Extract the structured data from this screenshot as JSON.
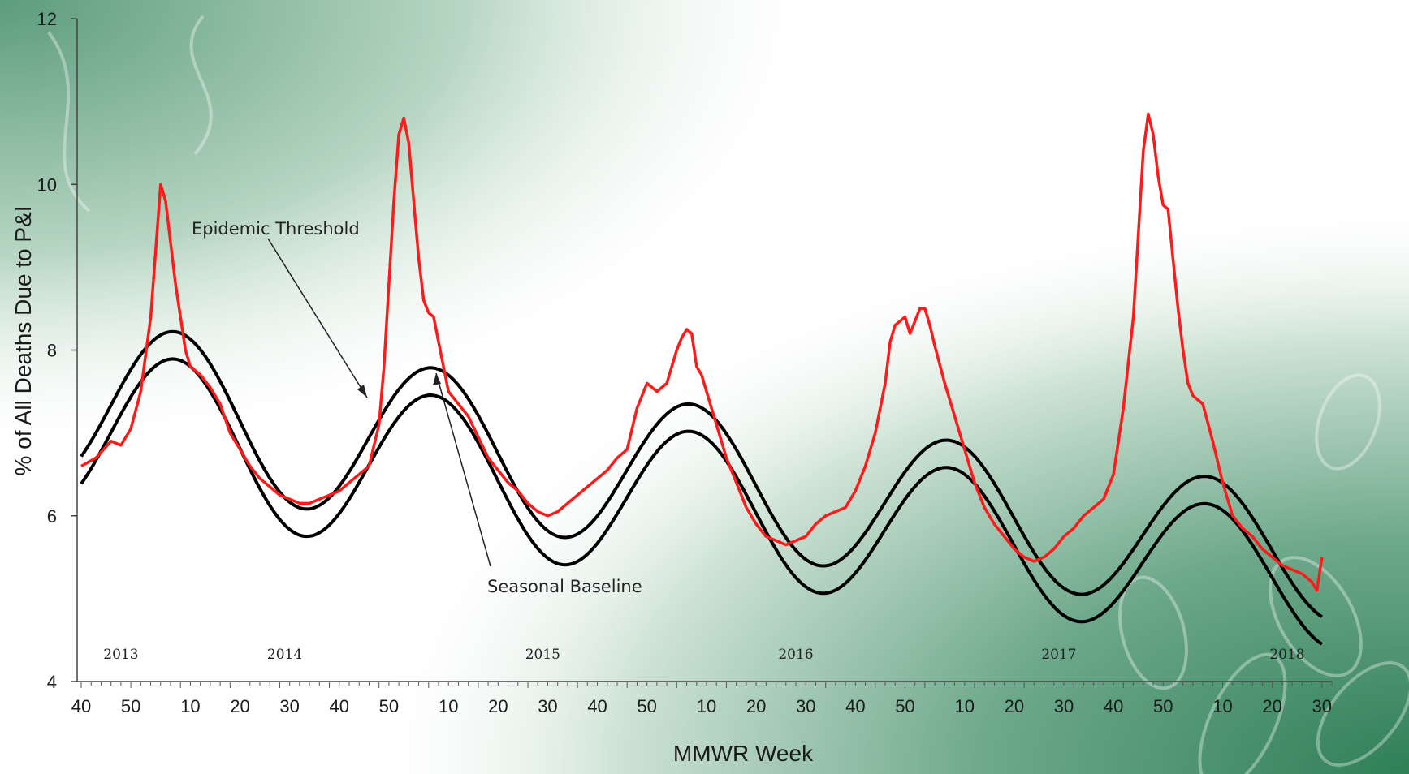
{
  "chart_data": {
    "type": "line",
    "title": "",
    "xlabel": "MMWR Week",
    "ylabel": "% of All Deaths Due to P&I",
    "ylim": [
      4,
      12
    ],
    "yticks": [
      "4",
      "6",
      "8",
      "10",
      "12"
    ],
    "xticks": [
      "40",
      "50",
      "10",
      "20",
      "30",
      "40",
      "50",
      "10",
      "20",
      "30",
      "40",
      "50",
      "10",
      "20",
      "30",
      "40",
      "50",
      "10",
      "20",
      "30",
      "40",
      "50",
      "10",
      "20",
      "30"
    ],
    "year_labels": [
      "2013",
      "2014",
      "2015",
      "2016",
      "2017",
      "2018"
    ],
    "annotations": [
      "Epidemic Threshold",
      "Seasonal Baseline"
    ],
    "series_colors": {
      "observed": "#ff1a1a",
      "baseline": "#000000",
      "threshold": "#000000"
    },
    "series": [
      {
        "values_by_week_index": [
          [
            0,
            6.6
          ],
          [
            3,
            6.7
          ],
          [
            6,
            6.9
          ],
          [
            8,
            6.85
          ],
          [
            10,
            7.05
          ],
          [
            12,
            7.5
          ],
          [
            14,
            8.4
          ],
          [
            15,
            9.2
          ],
          [
            16,
            10.0
          ],
          [
            17,
            9.8
          ],
          [
            18,
            9.3
          ],
          [
            19,
            8.8
          ],
          [
            20,
            8.4
          ],
          [
            21,
            8.0
          ],
          [
            22,
            7.8
          ],
          [
            24,
            7.7
          ],
          [
            26,
            7.55
          ],
          [
            28,
            7.35
          ],
          [
            30,
            7.0
          ],
          [
            32,
            6.8
          ],
          [
            34,
            6.6
          ],
          [
            36,
            6.45
          ],
          [
            38,
            6.35
          ],
          [
            40,
            6.25
          ],
          [
            42,
            6.2
          ],
          [
            44,
            6.15
          ],
          [
            46,
            6.15
          ],
          [
            48,
            6.2
          ],
          [
            50,
            6.25
          ],
          [
            52,
            6.3
          ],
          [
            54,
            6.4
          ],
          [
            56,
            6.5
          ],
          [
            58,
            6.6
          ],
          [
            60,
            7.1
          ],
          [
            61,
            7.8
          ],
          [
            62,
            8.8
          ],
          [
            63,
            9.8
          ],
          [
            64,
            10.6
          ],
          [
            65,
            10.8
          ],
          [
            66,
            10.5
          ],
          [
            67,
            9.8
          ],
          [
            68,
            9.1
          ],
          [
            69,
            8.6
          ],
          [
            70,
            8.45
          ],
          [
            71,
            8.4
          ],
          [
            72,
            8.1
          ],
          [
            73,
            7.8
          ],
          [
            74,
            7.5
          ],
          [
            76,
            7.35
          ],
          [
            78,
            7.2
          ],
          [
            80,
            6.95
          ],
          [
            82,
            6.7
          ],
          [
            84,
            6.55
          ],
          [
            86,
            6.4
          ],
          [
            88,
            6.3
          ],
          [
            90,
            6.15
          ],
          [
            92,
            6.05
          ],
          [
            94,
            6.0
          ],
          [
            96,
            6.05
          ],
          [
            98,
            6.15
          ],
          [
            100,
            6.25
          ],
          [
            102,
            6.35
          ],
          [
            104,
            6.45
          ],
          [
            106,
            6.55
          ],
          [
            108,
            6.7
          ],
          [
            110,
            6.8
          ],
          [
            112,
            7.3
          ],
          [
            114,
            7.6
          ],
          [
            116,
            7.5
          ],
          [
            118,
            7.6
          ],
          [
            120,
            8.0
          ],
          [
            121,
            8.15
          ],
          [
            122,
            8.25
          ],
          [
            123,
            8.2
          ],
          [
            124,
            7.8
          ],
          [
            125,
            7.7
          ],
          [
            126,
            7.5
          ],
          [
            128,
            7.1
          ],
          [
            130,
            6.7
          ],
          [
            132,
            6.4
          ],
          [
            134,
            6.1
          ],
          [
            136,
            5.9
          ],
          [
            138,
            5.75
          ],
          [
            140,
            5.7
          ],
          [
            142,
            5.65
          ],
          [
            144,
            5.7
          ],
          [
            146,
            5.75
          ],
          [
            148,
            5.9
          ],
          [
            150,
            6.0
          ],
          [
            152,
            6.05
          ],
          [
            154,
            6.1
          ],
          [
            156,
            6.3
          ],
          [
            158,
            6.6
          ],
          [
            160,
            7.0
          ],
          [
            162,
            7.6
          ],
          [
            163,
            8.1
          ],
          [
            164,
            8.3
          ],
          [
            165,
            8.35
          ],
          [
            166,
            8.4
          ],
          [
            167,
            8.2
          ],
          [
            168,
            8.35
          ],
          [
            169,
            8.5
          ],
          [
            170,
            8.5
          ],
          [
            171,
            8.3
          ],
          [
            172,
            8.05
          ],
          [
            174,
            7.6
          ],
          [
            176,
            7.2
          ],
          [
            178,
            6.8
          ],
          [
            180,
            6.4
          ],
          [
            182,
            6.1
          ],
          [
            184,
            5.9
          ],
          [
            186,
            5.75
          ],
          [
            188,
            5.6
          ],
          [
            190,
            5.5
          ],
          [
            192,
            5.45
          ],
          [
            194,
            5.5
          ],
          [
            196,
            5.6
          ],
          [
            198,
            5.75
          ],
          [
            200,
            5.85
          ],
          [
            202,
            6.0
          ],
          [
            204,
            6.1
          ],
          [
            206,
            6.2
          ],
          [
            208,
            6.5
          ],
          [
            210,
            7.3
          ],
          [
            212,
            8.4
          ],
          [
            213,
            9.4
          ],
          [
            214,
            10.4
          ],
          [
            215,
            10.85
          ],
          [
            216,
            10.6
          ],
          [
            217,
            10.1
          ],
          [
            218,
            9.75
          ],
          [
            219,
            9.7
          ],
          [
            220,
            9.1
          ],
          [
            221,
            8.5
          ],
          [
            222,
            8.0
          ],
          [
            223,
            7.6
          ],
          [
            224,
            7.45
          ],
          [
            226,
            7.35
          ],
          [
            228,
            6.9
          ],
          [
            230,
            6.4
          ],
          [
            232,
            6.0
          ],
          [
            234,
            5.85
          ],
          [
            236,
            5.75
          ],
          [
            238,
            5.6
          ],
          [
            240,
            5.5
          ],
          [
            242,
            5.4
          ],
          [
            244,
            5.35
          ],
          [
            246,
            5.3
          ],
          [
            248,
            5.2
          ],
          [
            249,
            5.1
          ],
          [
            250,
            5.5
          ]
        ]
      }
    ]
  }
}
